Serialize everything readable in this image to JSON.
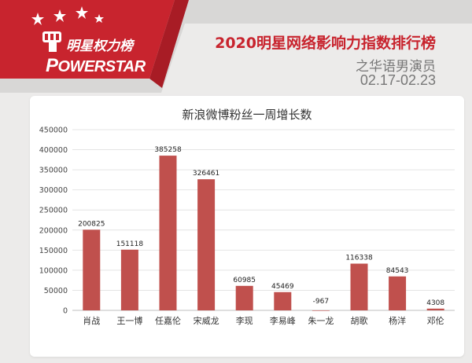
{
  "header": {
    "logo_cn": "明星权力榜",
    "logo_en": "OWERSTAR",
    "headline": "2020明星网络影响力指数排行榜",
    "subline": "之华语男演员",
    "dateline": "02.17-02.23"
  },
  "colors": {
    "brand_red": "#c8242e",
    "bar": "#c0504d"
  },
  "chart_data": {
    "type": "bar",
    "title": "新浪微博粉丝一周增长数",
    "categories": [
      "肖战",
      "王一博",
      "任嘉伦",
      "宋威龙",
      "李现",
      "李易峰",
      "朱一龙",
      "胡歌",
      "杨洋",
      "邓伦"
    ],
    "values": [
      200825,
      151118,
      385258,
      326461,
      60985,
      45469,
      -967,
      116338,
      84543,
      4308
    ],
    "data_labels": [
      "200825",
      "151118",
      "385258",
      "326461",
      "60985",
      "45469",
      "-967",
      "116338",
      "84543",
      "4308"
    ],
    "yticks": [
      "0",
      "50000",
      "100000",
      "150000",
      "200000",
      "250000",
      "300000",
      "350000",
      "400000",
      "450000"
    ],
    "ylim": [
      0,
      450000
    ],
    "xlabel": "",
    "ylabel": "",
    "grid": true
  }
}
